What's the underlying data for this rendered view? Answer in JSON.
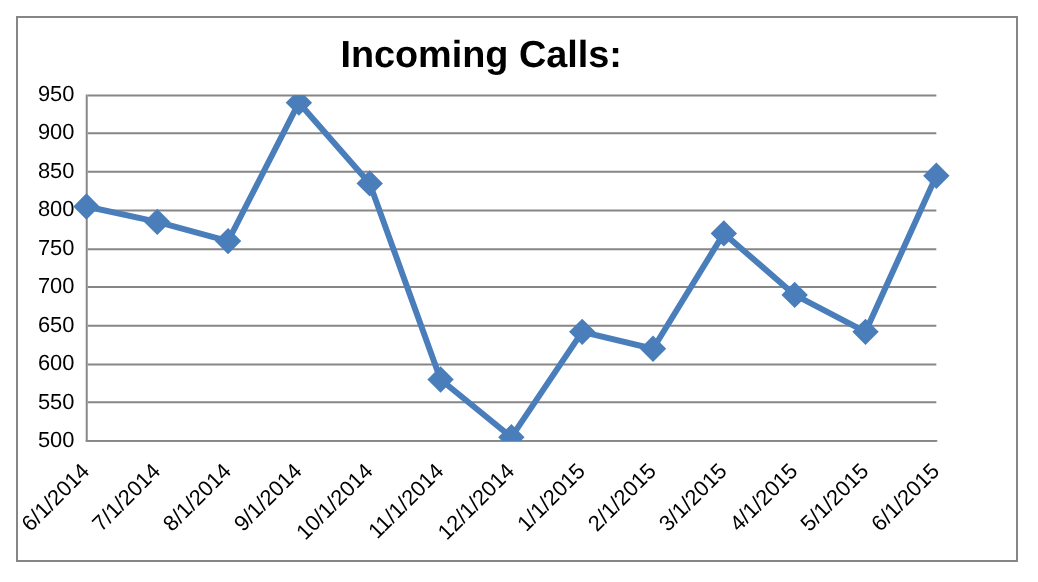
{
  "chart_data": {
    "type": "line",
    "title": "Incoming Calls:",
    "categories": [
      "6/1/2014",
      "7/1/2014",
      "8/1/2014",
      "9/1/2014",
      "10/1/2014",
      "11/1/2014",
      "12/1/2014",
      "1/1/2015",
      "2/1/2015",
      "3/1/2015",
      "4/1/2015",
      "5/1/2015",
      "6/1/2015"
    ],
    "series": [
      {
        "color": "#4a7ebb",
        "values": [
          805,
          785,
          760,
          940,
          835,
          580,
          505,
          642,
          620,
          770,
          690,
          642,
          845
        ]
      }
    ],
    "ylim": [
      500,
      950
    ],
    "yticks": [
      500,
      550,
      600,
      650,
      700,
      750,
      800,
      850,
      900,
      950
    ],
    "grid": "y",
    "legend": false,
    "marker": "diamond",
    "line_style": "solid"
  }
}
